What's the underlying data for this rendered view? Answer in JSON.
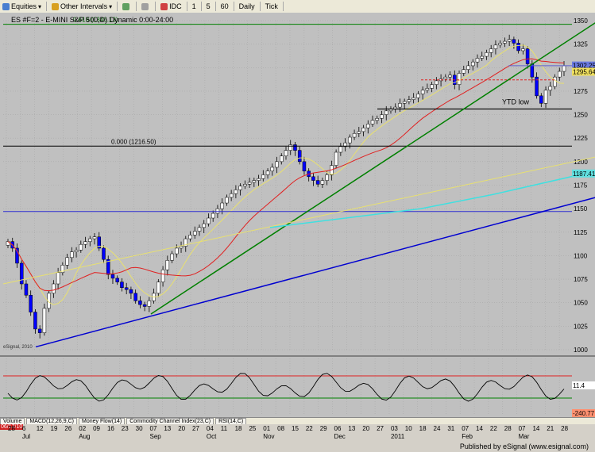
{
  "toolbar": {
    "items": [
      {
        "label": "Equities",
        "icon": "equities-icon",
        "caret": "▾"
      },
      {
        "label": "Other Intervals",
        "icon": "intervals-icon",
        "caret": "▾"
      },
      {
        "label": "",
        "icon": "link-icon"
      },
      {
        "label": "",
        "icon": "clock-icon"
      },
      {
        "label": "IDC",
        "icon": "idc-icon"
      },
      {
        "label": "1"
      },
      {
        "label": "5"
      },
      {
        "label": "60"
      },
      {
        "label": "Daily"
      },
      {
        "label": "Tick"
      }
    ]
  },
  "chart_title": "ES #F=2 - E-MINI S&P 500,D) Dynamic 0:00-24:00",
  "fib_label_top": "0.618 (1346.13)",
  "fib_label_zero": "0.000 (1216.50)",
  "annotation_ytd": "YTD low",
  "watermark": "eSignal, 2010",
  "indicator_tabs": [
    "Volume",
    "MACD(12,26,9,C)",
    "Money Flow(14)",
    "Commodity Channel Index(23,C)",
    "RSI(14,C)"
  ],
  "date_badge": "06/17/10",
  "x_labels": [
    {
      "label": "28",
      "sub": ""
    },
    {
      "label": "6",
      "sub": "Jul"
    },
    {
      "label": "12"
    },
    {
      "label": "19"
    },
    {
      "label": "26"
    },
    {
      "label": "02",
      "sub": "Aug"
    },
    {
      "label": "09"
    },
    {
      "label": "16"
    },
    {
      "label": "23"
    },
    {
      "label": "30"
    },
    {
      "label": "07",
      "sub": "Sep"
    },
    {
      "label": "13"
    },
    {
      "label": "20"
    },
    {
      "label": "27"
    },
    {
      "label": "04",
      "sub": "Oct"
    },
    {
      "label": "11"
    },
    {
      "label": "18"
    },
    {
      "label": "25"
    },
    {
      "label": "01",
      "sub": "Nov"
    },
    {
      "label": "08"
    },
    {
      "label": "15"
    },
    {
      "label": "22"
    },
    {
      "label": "29"
    },
    {
      "label": "06",
      "sub": "Dec"
    },
    {
      "label": "13"
    },
    {
      "label": "20"
    },
    {
      "label": "27"
    },
    {
      "label": "03",
      "sub": "2011"
    },
    {
      "label": "10"
    },
    {
      "label": "18"
    },
    {
      "label": "24"
    },
    {
      "label": "31"
    },
    {
      "label": "07",
      "sub": "Feb"
    },
    {
      "label": "14"
    },
    {
      "label": "22"
    },
    {
      "label": "28"
    },
    {
      "label": "07",
      "sub": "Mar"
    },
    {
      "label": "14"
    },
    {
      "label": "21"
    },
    {
      "label": "28"
    }
  ],
  "price_badges": [
    {
      "label": "1302.25",
      "value": 1302.25,
      "color": "#6a7ae0"
    },
    {
      "label": "1295.64",
      "value": 1295.64,
      "color": "#f0e060"
    },
    {
      "label": "1187.41",
      "value": 1187.41,
      "color": "#60e0e0"
    }
  ],
  "rsi_badges": [
    {
      "label": "11.4",
      "color": "#ffffff"
    },
    {
      "label": "-240.77",
      "color": "#ff9070"
    }
  ],
  "footer_text": "Published by eSignal (www.esignal.com)",
  "colors": {
    "bg": "#c0c0c0",
    "up": "#ffffff",
    "down": "#0000ff",
    "fib": "#008000",
    "grid": "#a8a8a8"
  },
  "chart_data": {
    "type": "line",
    "title": "ES #F=2 - E-MINI S&P 500,D) Dynamic 0:00-24:00",
    "xlabel": "",
    "ylabel": "",
    "ylim": [
      1000,
      1350
    ],
    "yticks": [
      1000,
      1025,
      1050,
      1075,
      1100,
      1125,
      1150,
      1175,
      1200,
      1225,
      1250,
      1275,
      1300,
      1325,
      1350
    ],
    "close": [
      1115,
      1108,
      1092,
      1070,
      1058,
      1040,
      1022,
      1018,
      1044,
      1060,
      1070,
      1082,
      1090,
      1098,
      1104,
      1106,
      1112,
      1115,
      1118,
      1120,
      1108,
      1096,
      1080,
      1076,
      1072,
      1066,
      1064,
      1060,
      1052,
      1048,
      1046,
      1052,
      1060,
      1072,
      1085,
      1095,
      1102,
      1108,
      1110,
      1118,
      1122,
      1126,
      1130,
      1134,
      1140,
      1145,
      1150,
      1156,
      1162,
      1166,
      1170,
      1174,
      1176,
      1178,
      1180,
      1182,
      1186,
      1190,
      1194,
      1200,
      1206,
      1212,
      1218,
      1212,
      1200,
      1190,
      1184,
      1180,
      1176,
      1180,
      1186,
      1196,
      1210,
      1216,
      1220,
      1226,
      1230,
      1232,
      1236,
      1240,
      1244,
      1246,
      1250,
      1254,
      1256,
      1258,
      1262,
      1264,
      1266,
      1268,
      1272,
      1276,
      1278,
      1282,
      1286,
      1288,
      1290,
      1292,
      1282,
      1294,
      1298,
      1302,
      1306,
      1310,
      1312,
      1316,
      1320,
      1324,
      1326,
      1328,
      1330,
      1326,
      1318,
      1320,
      1304,
      1290,
      1270,
      1262,
      1276,
      1280,
      1290,
      1296,
      1302
    ]
  }
}
